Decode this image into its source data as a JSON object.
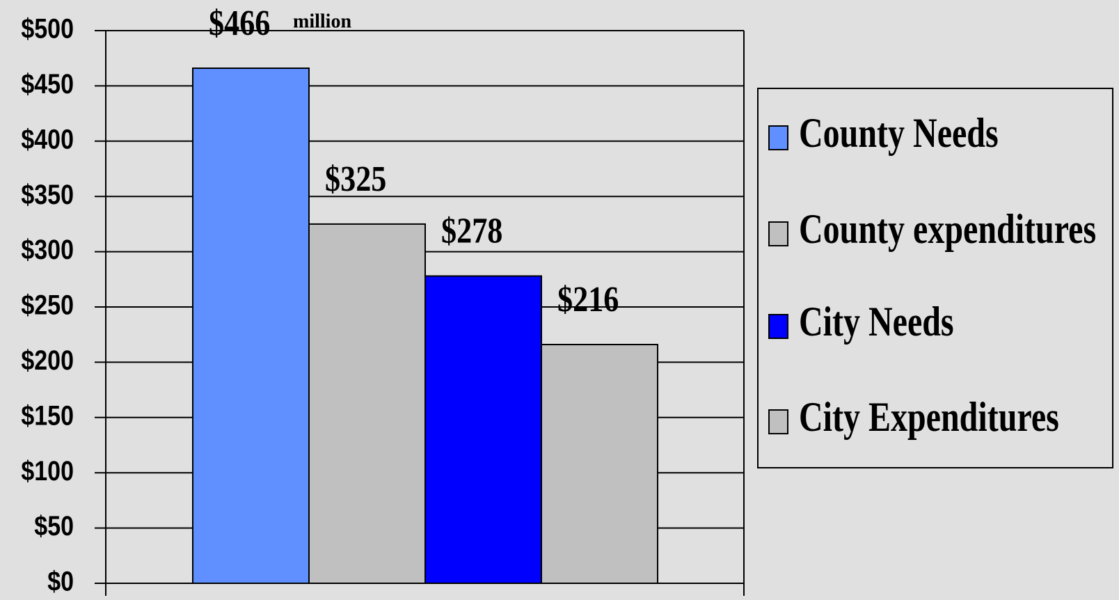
{
  "chart_data": {
    "type": "bar",
    "categories": [
      null
    ],
    "series": [
      {
        "name": "County Needs",
        "color": "#6090ff",
        "values": [
          466
        ],
        "value_labels": [
          "$466"
        ]
      },
      {
        "name": "County expenditures",
        "color": "#c0c0c0",
        "values": [
          325
        ],
        "value_labels": [
          "$325"
        ]
      },
      {
        "name": "City Needs",
        "color": "#0000ff",
        "values": [
          278
        ],
        "value_labels": [
          "$278"
        ]
      },
      {
        "name": "City Expenditures",
        "color": "#c0c0c0",
        "values": [
          216
        ],
        "value_labels": [
          "$216"
        ]
      }
    ],
    "annotation": "million",
    "ylim": [
      0,
      500
    ],
    "yticks": [
      {
        "value": 0,
        "label": "$0"
      },
      {
        "value": 50,
        "label": "$50"
      },
      {
        "value": 100,
        "label": "$100"
      },
      {
        "value": 150,
        "label": "$150"
      },
      {
        "value": 200,
        "label": "$200"
      },
      {
        "value": 250,
        "label": "$250"
      },
      {
        "value": 300,
        "label": "$300"
      },
      {
        "value": 350,
        "label": "$350"
      },
      {
        "value": 400,
        "label": "$400"
      },
      {
        "value": 450,
        "label": "$450"
      },
      {
        "value": 500,
        "label": "$500"
      }
    ],
    "grid": true,
    "legend": "right"
  }
}
